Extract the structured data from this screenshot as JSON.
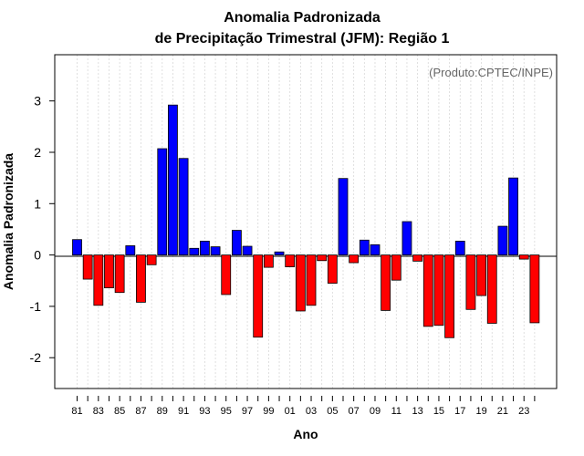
{
  "chart_data": {
    "type": "bar",
    "title": "Anomalia Padronizada",
    "subtitle": "de Precipitação Trimestral (JFM): Região 1",
    "xlabel": "Ano",
    "ylabel": "Anomalia Padronizada",
    "annotation": "(Produto:CPTEC/INPE)",
    "ylim": [
      -2.6,
      3.9
    ],
    "yticks": [
      -2,
      -1,
      0,
      1,
      2,
      3
    ],
    "grid": true,
    "positive_color": "#0000ff",
    "negative_color": "#ff0000",
    "categories": [
      "1981",
      "1982",
      "1983",
      "1984",
      "1985",
      "1986",
      "1987",
      "1988",
      "1989",
      "1990",
      "1991",
      "1992",
      "1993",
      "1994",
      "1995",
      "1996",
      "1997",
      "1998",
      "1999",
      "2000",
      "2001",
      "2002",
      "2003",
      "2004",
      "2005",
      "2006",
      "2007",
      "2008",
      "2009",
      "2010",
      "2011",
      "2012",
      "2013",
      "2014",
      "2015",
      "2016",
      "2017",
      "2018",
      "2019",
      "2020",
      "2021",
      "2022",
      "2023",
      "2024"
    ],
    "tick_labels": [
      "81",
      "",
      "83",
      "",
      "85",
      "",
      "87",
      "",
      "89",
      "",
      "91",
      "",
      "93",
      "",
      "95",
      "",
      "97",
      "",
      "99",
      "",
      "01",
      "",
      "03",
      "",
      "05",
      "",
      "07",
      "",
      "09",
      "",
      "11",
      "",
      "13",
      "",
      "15",
      "",
      "17",
      "",
      "19",
      "",
      "21",
      "",
      "23",
      ""
    ],
    "values": [
      0.3,
      -0.47,
      -0.98,
      -0.64,
      -0.73,
      0.18,
      -0.92,
      -0.19,
      2.07,
      2.92,
      1.88,
      0.13,
      0.27,
      0.16,
      -0.77,
      0.48,
      0.17,
      -1.6,
      -0.24,
      0.06,
      -0.23,
      -1.09,
      -0.98,
      -0.11,
      -0.55,
      1.49,
      -0.15,
      0.29,
      0.2,
      -1.08,
      -0.49,
      0.65,
      -0.12,
      -1.39,
      -1.37,
      -1.61,
      0.27,
      -1.06,
      -0.79,
      -1.33,
      0.56,
      1.5,
      -0.08,
      -1.32
    ]
  }
}
